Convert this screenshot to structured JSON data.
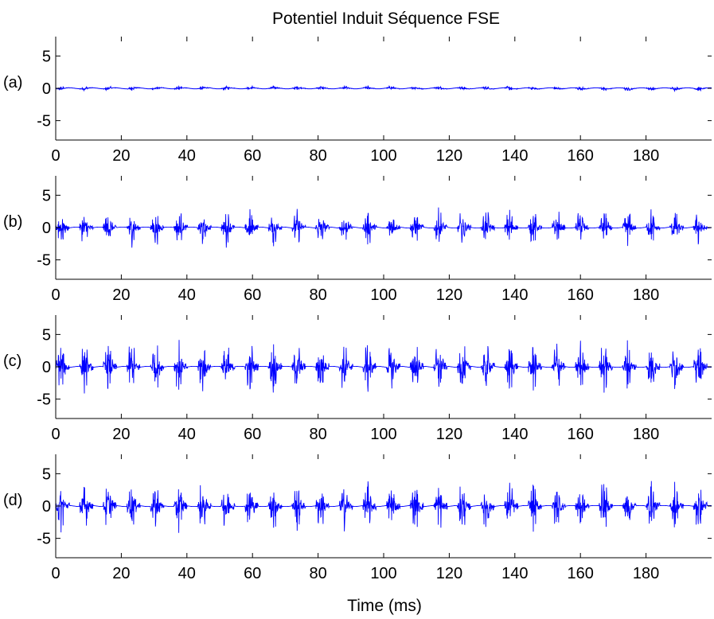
{
  "chart_data": {
    "title": "Potentiel Induit Séquence FSE",
    "xlabel": "Time (ms)",
    "line_color": "#0000ff",
    "panels": [
      {
        "label": "(a)",
        "type": "line",
        "xlim": [
          0,
          200
        ],
        "ylim": [
          -8,
          8
        ],
        "xticks": [
          0,
          20,
          40,
          60,
          80,
          100,
          120,
          140,
          160,
          180
        ],
        "yticks": [
          5,
          0,
          -5
        ],
        "series": [
          {
            "x_start": 0,
            "x_end": 200,
            "period_ms": 7.2,
            "burst_count": 28,
            "burst_amplitude": 0.35,
            "max_abs_value": 0.4,
            "baseline": 0
          }
        ]
      },
      {
        "label": "(b)",
        "type": "line",
        "xlim": [
          0,
          200
        ],
        "ylim": [
          -8,
          8
        ],
        "xticks": [
          0,
          20,
          40,
          60,
          80,
          100,
          120,
          140,
          160,
          180
        ],
        "yticks": [
          5,
          0,
          -5
        ],
        "series": [
          {
            "x_start": 0,
            "x_end": 200,
            "period_ms": 7.2,
            "burst_count": 28,
            "burst_amplitude": 3.2,
            "max_abs_value": 3.6,
            "baseline": 0
          }
        ]
      },
      {
        "label": "(c)",
        "type": "line",
        "xlim": [
          0,
          200
        ],
        "ylim": [
          -8,
          8
        ],
        "xticks": [
          0,
          20,
          40,
          60,
          80,
          100,
          120,
          140,
          160,
          180
        ],
        "yticks": [
          5,
          0,
          -5
        ],
        "series": [
          {
            "x_start": 0,
            "x_end": 200,
            "period_ms": 7.2,
            "burst_count": 28,
            "burst_amplitude": 4.6,
            "max_abs_value": 5.0,
            "baseline": 0
          }
        ]
      },
      {
        "label": "(d)",
        "type": "line",
        "xlim": [
          0,
          200
        ],
        "ylim": [
          -8,
          8
        ],
        "xticks": [
          0,
          20,
          40,
          60,
          80,
          100,
          120,
          140,
          160,
          180
        ],
        "yticks": [
          5,
          0,
          -5
        ],
        "series": [
          {
            "x_start": 0,
            "x_end": 200,
            "period_ms": 7.2,
            "burst_count": 28,
            "burst_amplitude": 4.4,
            "max_abs_value": 5.0,
            "baseline": 0
          }
        ]
      }
    ]
  }
}
